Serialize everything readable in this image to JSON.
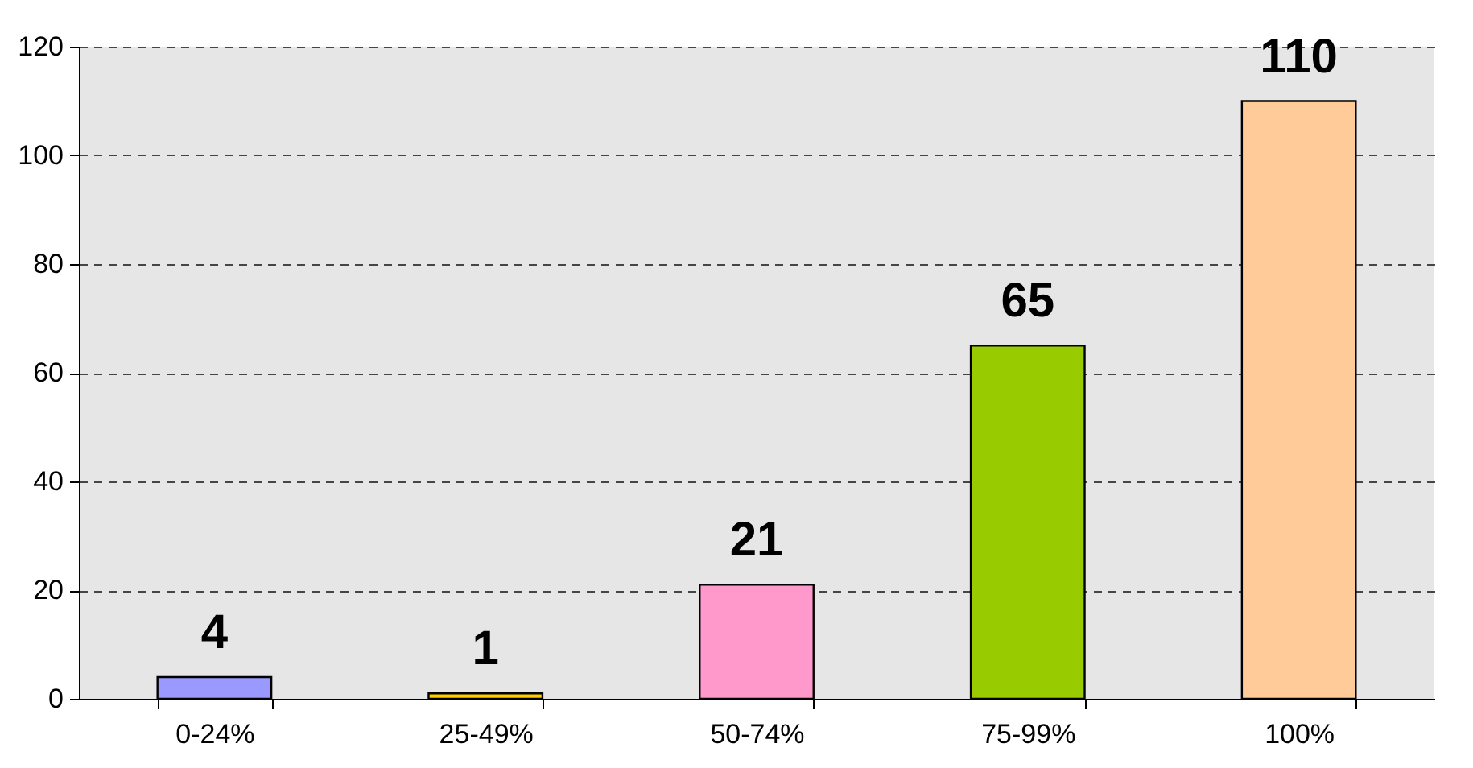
{
  "chart_data": {
    "type": "bar",
    "categories": [
      "0-24%",
      "25-49%",
      "50-74%",
      "75-99%",
      "100%"
    ],
    "values": [
      4,
      1,
      21,
      65,
      110
    ],
    "colors": [
      "#9999ff",
      "#ffcc00",
      "#ff99cc",
      "#99cc00",
      "#ffcc99"
    ],
    "ylim": [
      0,
      120
    ],
    "yticks": [
      0,
      20,
      40,
      60,
      80,
      100,
      120
    ],
    "grid": "y",
    "data_labels": true
  }
}
